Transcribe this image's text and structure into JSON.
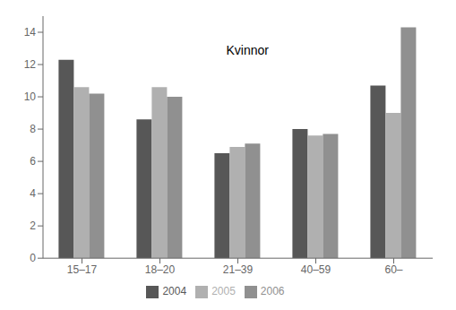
{
  "chart_data": {
    "type": "bar",
    "annotation": "Kvinnor",
    "categories": [
      "15–17",
      "18–20",
      "21–39",
      "40–59",
      "60–"
    ],
    "series": [
      {
        "name": "2004",
        "color": "#575757",
        "values": [
          12.3,
          8.6,
          6.5,
          8.0,
          10.7
        ]
      },
      {
        "name": "2005",
        "color": "#b0b0b0",
        "values": [
          10.6,
          10.6,
          6.9,
          7.6,
          9.0
        ]
      },
      {
        "name": "2006",
        "color": "#909090",
        "values": [
          10.2,
          10.0,
          7.1,
          7.7,
          14.3
        ]
      }
    ],
    "ylim": [
      0,
      15
    ],
    "yticks": [
      0,
      2,
      4,
      6,
      8,
      10,
      12,
      14
    ],
    "grid": false,
    "legend": "bottom"
  }
}
